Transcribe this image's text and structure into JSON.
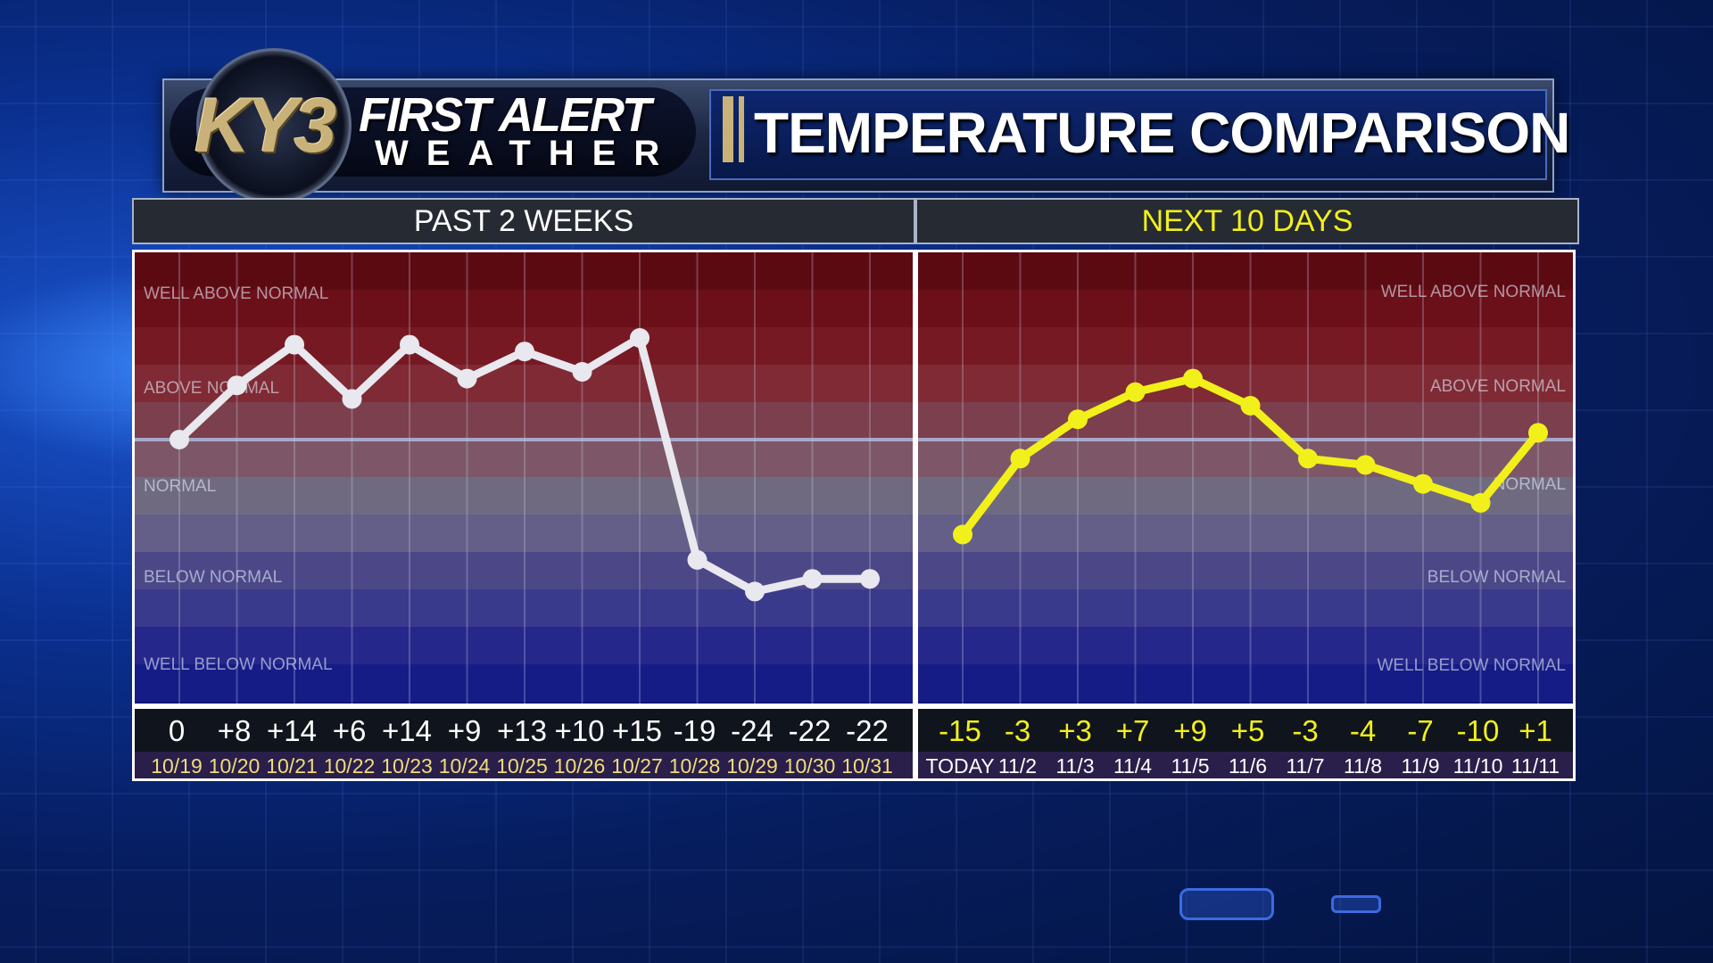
{
  "logo": {
    "brand": "KY3",
    "line1": "FIRST ALERT",
    "line2": "WEATHER"
  },
  "title": "TEMPERATURE COMPARISON",
  "colors": {
    "past_line": "#e8e8ee",
    "next_line": "#f2f01a",
    "past_values": "#ffffff",
    "next_values": "#f2f01a",
    "dates": "#f0dc7a"
  },
  "chart_data": [
    {
      "type": "line",
      "title": "PAST 2 WEEKS",
      "categories": [
        "10/19",
        "10/20",
        "10/21",
        "10/22",
        "10/23",
        "10/24",
        "10/25",
        "10/26",
        "10/27",
        "10/28",
        "10/29",
        "10/30",
        "10/31"
      ],
      "value_labels": [
        "0",
        "+8",
        "+14",
        "+6",
        "+14",
        "+9",
        "+13",
        "+10",
        "+15",
        "-19",
        "-24",
        "-22",
        "-22"
      ],
      "series": [
        {
          "values": [
            0,
            8,
            14,
            6,
            14,
            9,
            13,
            10,
            15,
            -19,
            -24,
            -22,
            -22
          ]
        }
      ],
      "band_labels": [
        "WELL ABOVE NORMAL",
        "ABOVE NORMAL",
        "NORMAL",
        "BELOW NORMAL",
        "WELL BELOW NORMAL"
      ],
      "band_label_align": "left"
    },
    {
      "type": "line",
      "title": "NEXT 10 DAYS",
      "categories": [
        "TODAY",
        "11/2",
        "11/3",
        "11/4",
        "11/5",
        "11/6",
        "11/7",
        "11/8",
        "11/9",
        "11/10",
        "11/11"
      ],
      "value_labels": [
        "-15",
        "-3",
        "+3",
        "+7",
        "+9",
        "+5",
        "-3",
        "-4",
        "-7",
        "-10",
        "+1"
      ],
      "series": [
        {
          "values": [
            -15,
            -3,
            3,
            7,
            9,
            5,
            -3,
            -4,
            -7,
            -10,
            1
          ]
        }
      ],
      "band_labels": [
        "WELL ABOVE NORMAL",
        "ABOVE NORMAL",
        "NORMAL",
        "BELOW NORMAL",
        "WELL BELOW NORMAL"
      ],
      "band_label_align": "right"
    }
  ]
}
